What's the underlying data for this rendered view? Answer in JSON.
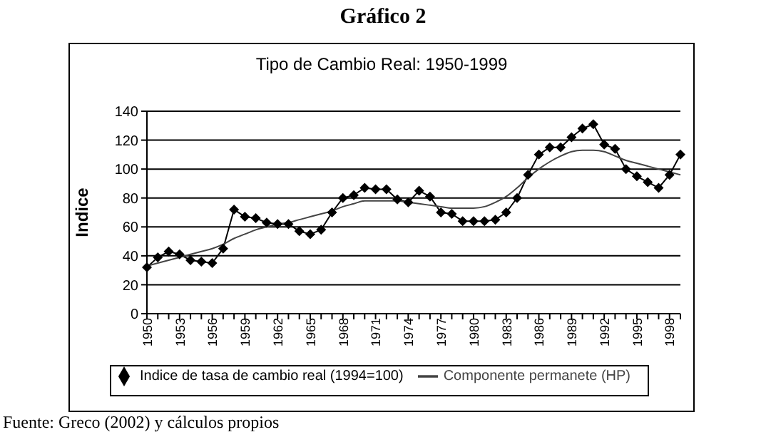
{
  "chart_data": {
    "type": "line",
    "title": "Gráfico 2",
    "subtitle": "Tipo de Cambio Real: 1950-1999",
    "ylabel": "Indice",
    "annotations": [
      "Fuente: Greco (2002) y cálculos propios"
    ],
    "categories": [
      "1950",
      null,
      null,
      "1953",
      null,
      null,
      "1956",
      null,
      null,
      "1959",
      null,
      null,
      "1962",
      null,
      null,
      "1965",
      null,
      null,
      "1968",
      null,
      null,
      "1971",
      null,
      null,
      "1974",
      null,
      null,
      "1977",
      null,
      null,
      "1980",
      null,
      null,
      "1983",
      null,
      null,
      "1986",
      null,
      null,
      "1989",
      null,
      null,
      "1992",
      null,
      null,
      "1995",
      null,
      null,
      "1998",
      null
    ],
    "series": [
      {
        "name": "Indice de tasa de cambio real (1994=100)",
        "color": "#000000",
        "marker": "diamond",
        "values": [
          32,
          39,
          43,
          41,
          37,
          36,
          35,
          45,
          72,
          67,
          66,
          63,
          62,
          62,
          57,
          55,
          58,
          70,
          80,
          82,
          87,
          86,
          86,
          79,
          77,
          85,
          81,
          70,
          69,
          64,
          64,
          64,
          65,
          70,
          80,
          96,
          110,
          115,
          115,
          122,
          128,
          131,
          117,
          114,
          100,
          95,
          91,
          87,
          96,
          110
        ]
      },
      {
        "name": "Componente permanete (HP)",
        "color": "#444444",
        "marker": "none",
        "values": [
          33,
          35,
          37,
          39,
          41,
          43,
          45,
          48,
          52,
          55,
          58,
          60,
          62,
          63,
          65,
          67,
          69,
          71,
          74,
          76,
          78,
          78,
          78,
          78,
          77,
          76,
          75,
          74,
          73,
          73,
          73,
          74,
          77,
          81,
          87,
          94,
          100,
          105,
          109,
          112,
          113,
          113,
          112,
          109,
          106,
          104,
          102,
          100,
          98,
          96
        ]
      }
    ],
    "ylim": [
      0,
      140
    ],
    "yticks": [
      0,
      20,
      40,
      60,
      80,
      100,
      120,
      140
    ],
    "grid": "y",
    "legend": "bottom",
    "line_style": "solid"
  }
}
